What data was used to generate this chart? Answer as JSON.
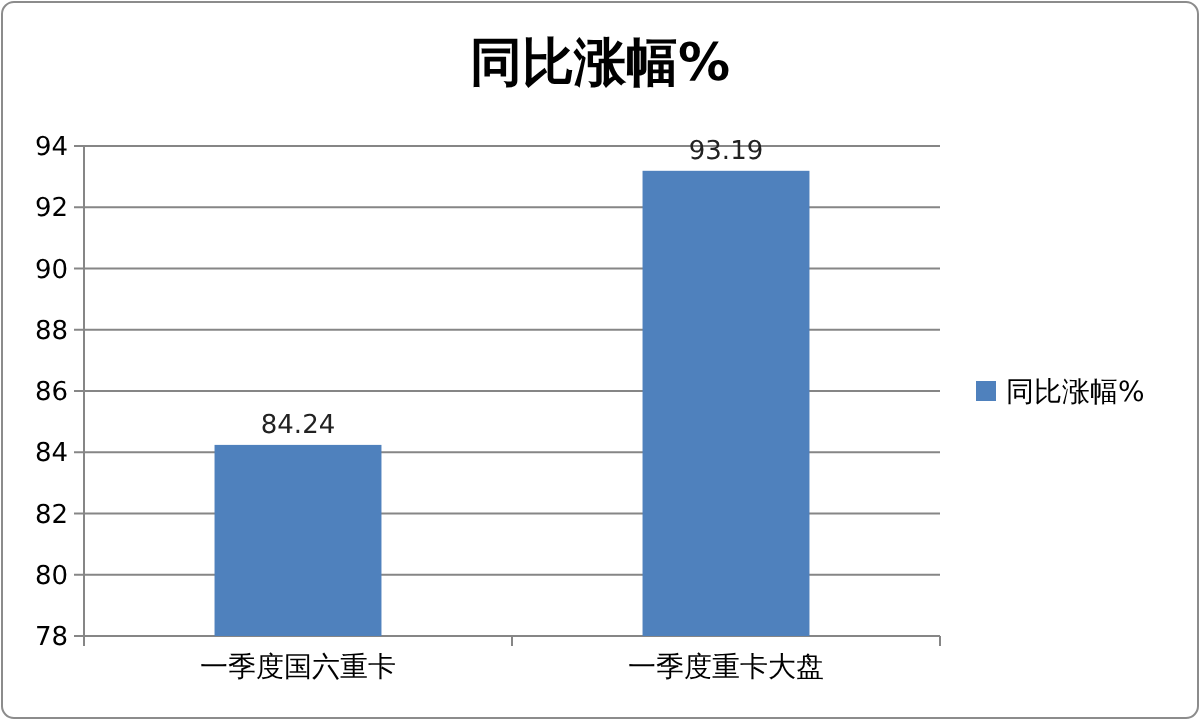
{
  "chart_data": {
    "type": "bar",
    "title": "同比涨幅%",
    "categories": [
      "一季度国六重卡",
      "一季度重卡大盘"
    ],
    "series": [
      {
        "name": "同比涨幅%",
        "color": "#4f81bd",
        "values": [
          84.24,
          93.19
        ]
      }
    ],
    "ylim": [
      78,
      94
    ],
    "yticks": [
      78,
      80,
      82,
      84,
      86,
      88,
      90,
      92,
      94
    ],
    "grid": "y",
    "legend": "right",
    "data_labels": true
  }
}
